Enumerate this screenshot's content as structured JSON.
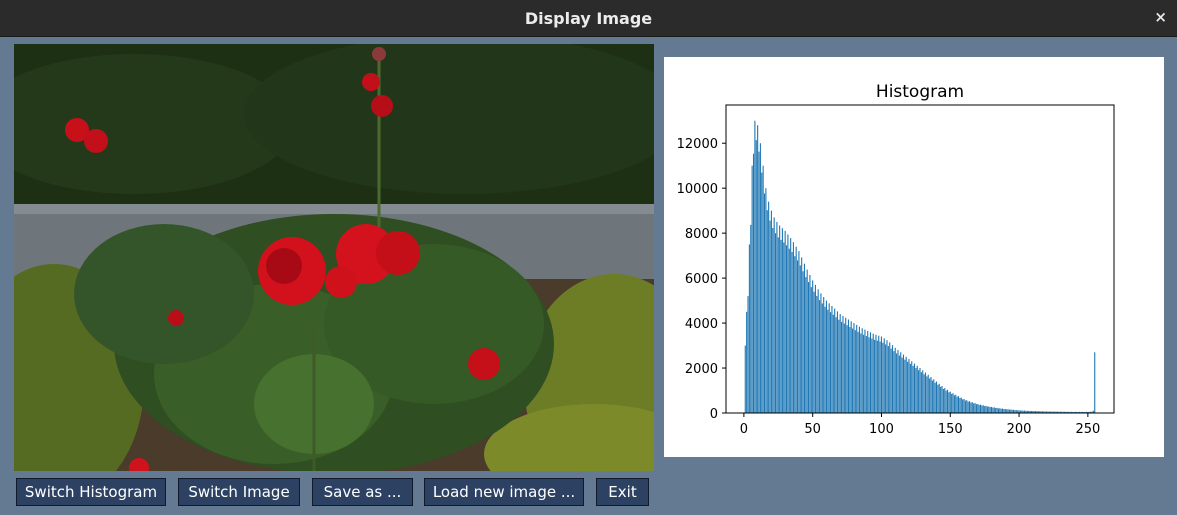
{
  "window": {
    "title": "Display Image",
    "close_glyph": "×"
  },
  "image": {
    "subject": "red roses in a garden"
  },
  "histogram": {
    "title": "Histogram",
    "x_ticks": [
      "0",
      "50",
      "100",
      "150",
      "200",
      "250"
    ],
    "y_ticks": [
      "0",
      "2000",
      "4000",
      "6000",
      "8000",
      "10000",
      "12000"
    ],
    "bar_color": "#1f77b4"
  },
  "chart_data": {
    "type": "bar",
    "title": "Histogram",
    "xlabel": "",
    "ylabel": "",
    "xlim": [
      -13,
      269
    ],
    "ylim": [
      0,
      13700
    ],
    "x_range": [
      0,
      255
    ],
    "anchors": [
      [
        0,
        0
      ],
      [
        1,
        3000
      ],
      [
        2,
        4500
      ],
      [
        3,
        5200
      ],
      [
        4,
        7500
      ],
      [
        5,
        9000
      ],
      [
        6,
        11000
      ],
      [
        7,
        12400
      ],
      [
        8,
        13000
      ],
      [
        9,
        13050
      ],
      [
        10,
        12800
      ],
      [
        11,
        12500
      ],
      [
        12,
        12000
      ],
      [
        13,
        11500
      ],
      [
        14,
        11000
      ],
      [
        15,
        10500
      ],
      [
        16,
        10000
      ],
      [
        18,
        9400
      ],
      [
        20,
        9000
      ],
      [
        22,
        8700
      ],
      [
        25,
        8400
      ],
      [
        30,
        8100
      ],
      [
        35,
        7700
      ],
      [
        40,
        7200
      ],
      [
        45,
        6500
      ],
      [
        50,
        5900
      ],
      [
        55,
        5400
      ],
      [
        60,
        5000
      ],
      [
        65,
        4700
      ],
      [
        70,
        4400
      ],
      [
        75,
        4200
      ],
      [
        80,
        4000
      ],
      [
        85,
        3800
      ],
      [
        90,
        3650
      ],
      [
        95,
        3500
      ],
      [
        100,
        3400
      ],
      [
        105,
        3200
      ],
      [
        110,
        2900
      ],
      [
        115,
        2650
      ],
      [
        120,
        2400
      ],
      [
        125,
        2150
      ],
      [
        130,
        1900
      ],
      [
        135,
        1650
      ],
      [
        140,
        1400
      ],
      [
        145,
        1150
      ],
      [
        150,
        950
      ],
      [
        155,
        780
      ],
      [
        160,
        620
      ],
      [
        165,
        500
      ],
      [
        170,
        400
      ],
      [
        175,
        330
      ],
      [
        180,
        270
      ],
      [
        185,
        220
      ],
      [
        190,
        180
      ],
      [
        195,
        150
      ],
      [
        200,
        120
      ],
      [
        210,
        90
      ],
      [
        220,
        70
      ],
      [
        230,
        60
      ],
      [
        240,
        50
      ],
      [
        250,
        50
      ],
      [
        253,
        60
      ],
      [
        254,
        100
      ],
      [
        255,
        2700
      ]
    ]
  },
  "buttons": {
    "switch_histogram": "Switch Histogram",
    "switch_image": "Switch Image",
    "save_as": "Save as ...",
    "load_new": "Load new image ...",
    "exit": "Exit"
  }
}
